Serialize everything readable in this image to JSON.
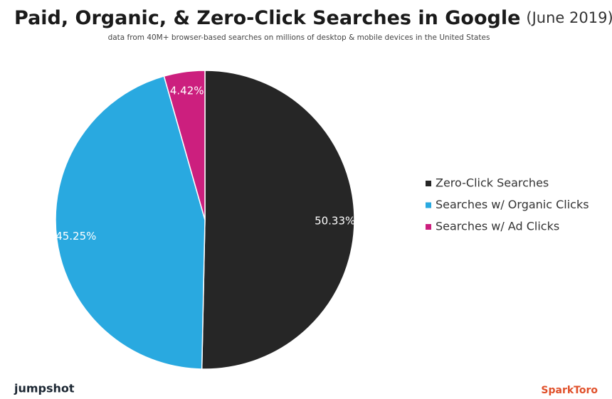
{
  "chart_data": {
    "type": "pie",
    "title": "Paid, Organic, & Zero-Click Searches in Google",
    "title_note": "(June 2019)",
    "subtitle": "data from 40M+ browser-based searches on millions of desktop & mobile devices in the United States",
    "categories": [
      "Zero-Click Searches",
      "Searches w/ Organic Clicks",
      "Searches w/ Ad Clicks"
    ],
    "values": [
      50.33,
      45.25,
      4.42
    ],
    "value_labels": [
      "50.33%",
      "45.25%",
      "4.42%"
    ],
    "colors": [
      "#262626",
      "#29a9e0",
      "#cc1f7e"
    ],
    "legend": "right"
  },
  "branding": {
    "left": "jumpshot",
    "right": "SparkToro"
  }
}
